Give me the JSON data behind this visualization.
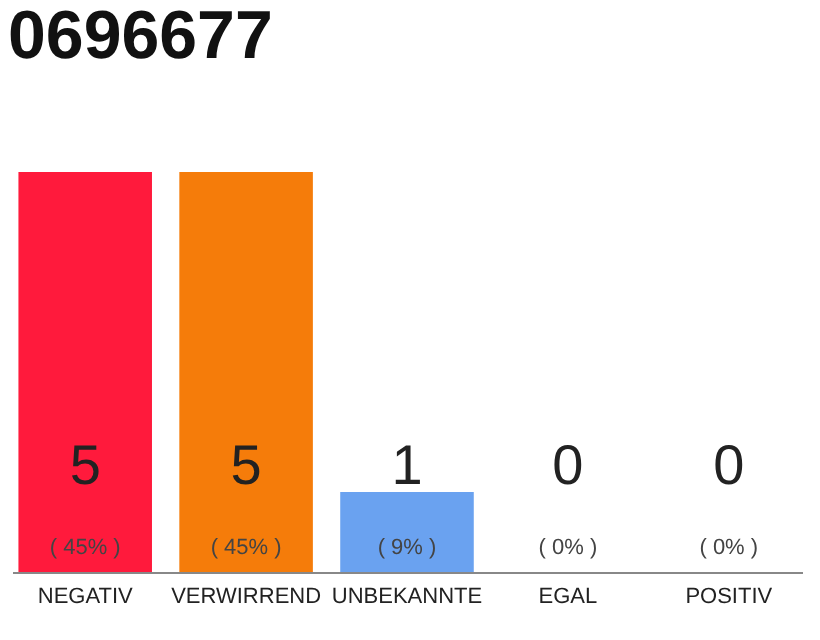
{
  "chart_data": {
    "type": "bar",
    "title": "0696677",
    "categories": [
      "NEGATIV",
      "VERWIRREND",
      "UNBEKANNTE",
      "EGAL",
      "POSITIV"
    ],
    "values": [
      5,
      5,
      1,
      0,
      0
    ],
    "colors": [
      "#ff1a3c",
      "#f57c0a",
      "#6aa2f0",
      "#d8d8d8",
      "#d8d8d8"
    ],
    "data_labels": true,
    "annotations": [
      {
        "text": "( 45% )",
        "x": "NEGATIV",
        "y": 0
      },
      {
        "text": "( 45% )",
        "x": "VERWIRREND",
        "y": 0
      },
      {
        "text": "( 9% )",
        "x": "UNBEKANNTE",
        "y": 0
      },
      {
        "text": "( 0% )",
        "x": "EGAL",
        "y": 0
      },
      {
        "text": "( 0% )",
        "x": "POSITIV",
        "y": 0
      }
    ],
    "grid": false
  }
}
